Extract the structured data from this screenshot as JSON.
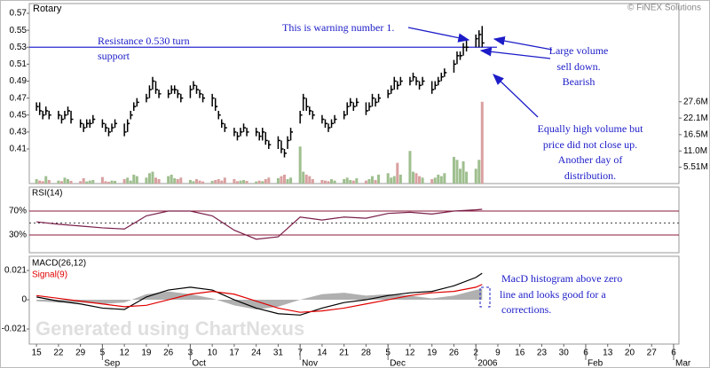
{
  "chart_data": [
    {
      "type": "ohlc",
      "title": "Rotary",
      "source": "© FiNEX Solutions",
      "color": "#000000",
      "xlim": [
        -2.3,
        204.7
      ],
      "x": [
        0,
        1,
        2,
        3,
        4,
        7,
        8,
        9,
        10,
        11,
        14,
        15,
        16,
        17,
        18,
        21,
        22,
        23,
        24,
        25,
        28,
        29,
        30,
        31,
        32,
        35,
        36,
        37,
        38,
        39,
        42,
        43,
        44,
        45,
        46,
        49,
        50,
        51,
        52,
        53,
        56,
        57,
        58,
        59,
        60,
        63,
        64,
        65,
        66,
        67,
        70,
        71,
        72,
        73,
        74,
        77,
        78,
        79,
        80,
        81,
        84,
        85,
        86,
        87,
        88,
        91,
        92,
        93,
        94,
        95,
        98,
        99,
        100,
        101,
        102,
        105,
        106,
        107,
        108,
        109,
        112,
        113,
        114,
        115,
        116,
        119,
        120,
        121,
        122,
        123,
        126,
        127,
        128,
        129,
        130,
        133,
        134,
        135,
        136,
        137,
        140,
        141,
        142
      ],
      "high": [
        0.465,
        0.465,
        0.455,
        0.46,
        0.455,
        0.455,
        0.45,
        0.455,
        0.46,
        0.455,
        0.445,
        0.44,
        0.445,
        0.445,
        0.45,
        0.445,
        0.44,
        0.435,
        0.44,
        0.445,
        0.44,
        0.445,
        0.455,
        0.465,
        0.47,
        0.475,
        0.485,
        0.495,
        0.49,
        0.48,
        0.48,
        0.485,
        0.485,
        0.48,
        0.475,
        0.485,
        0.49,
        0.485,
        0.48,
        0.475,
        0.475,
        0.47,
        0.455,
        0.445,
        0.44,
        0.435,
        0.43,
        0.435,
        0.44,
        0.435,
        0.435,
        0.43,
        0.435,
        0.43,
        0.42,
        0.425,
        0.42,
        0.41,
        0.425,
        0.435,
        0.455,
        0.475,
        0.47,
        0.46,
        0.455,
        0.45,
        0.445,
        0.44,
        0.445,
        0.45,
        0.455,
        0.465,
        0.47,
        0.465,
        0.47,
        0.465,
        0.465,
        0.475,
        0.47,
        0.475,
        0.48,
        0.485,
        0.495,
        0.49,
        0.495,
        0.495,
        0.5,
        0.495,
        0.49,
        0.495,
        0.49,
        0.49,
        0.495,
        0.5,
        0.505,
        0.515,
        0.525,
        0.525,
        0.535,
        0.54,
        0.545,
        0.55,
        0.555
      ],
      "low": [
        0.455,
        0.45,
        0.445,
        0.45,
        0.445,
        0.445,
        0.44,
        0.445,
        0.45,
        0.44,
        0.435,
        0.43,
        0.435,
        0.435,
        0.44,
        0.435,
        0.43,
        0.425,
        0.43,
        0.435,
        0.425,
        0.43,
        0.445,
        0.455,
        0.46,
        0.465,
        0.47,
        0.48,
        0.475,
        0.47,
        0.47,
        0.475,
        0.475,
        0.47,
        0.465,
        0.47,
        0.48,
        0.475,
        0.47,
        0.465,
        0.46,
        0.455,
        0.445,
        0.435,
        0.43,
        0.425,
        0.42,
        0.425,
        0.43,
        0.425,
        0.425,
        0.42,
        0.42,
        0.415,
        0.41,
        0.41,
        0.405,
        0.4,
        0.41,
        0.42,
        0.44,
        0.455,
        0.455,
        0.45,
        0.445,
        0.44,
        0.435,
        0.43,
        0.435,
        0.44,
        0.445,
        0.45,
        0.46,
        0.455,
        0.46,
        0.45,
        0.455,
        0.46,
        0.46,
        0.465,
        0.47,
        0.475,
        0.48,
        0.48,
        0.485,
        0.485,
        0.49,
        0.485,
        0.48,
        0.485,
        0.475,
        0.48,
        0.485,
        0.49,
        0.495,
        0.5,
        0.51,
        0.515,
        0.52,
        0.525,
        0.53,
        0.53,
        0.53
      ],
      "close": [
        0.46,
        0.455,
        0.45,
        0.455,
        0.45,
        0.45,
        0.445,
        0.45,
        0.455,
        0.445,
        0.44,
        0.435,
        0.44,
        0.44,
        0.445,
        0.44,
        0.435,
        0.43,
        0.435,
        0.44,
        0.43,
        0.44,
        0.45,
        0.46,
        0.465,
        0.47,
        0.48,
        0.49,
        0.48,
        0.475,
        0.475,
        0.48,
        0.48,
        0.475,
        0.47,
        0.48,
        0.485,
        0.48,
        0.475,
        0.47,
        0.47,
        0.46,
        0.45,
        0.44,
        0.435,
        0.43,
        0.425,
        0.43,
        0.435,
        0.43,
        0.43,
        0.425,
        0.43,
        0.42,
        0.415,
        0.42,
        0.41,
        0.405,
        0.42,
        0.43,
        0.45,
        0.47,
        0.46,
        0.455,
        0.45,
        0.445,
        0.44,
        0.435,
        0.44,
        0.445,
        0.45,
        0.46,
        0.465,
        0.46,
        0.465,
        0.455,
        0.46,
        0.47,
        0.465,
        0.47,
        0.475,
        0.48,
        0.49,
        0.485,
        0.49,
        0.49,
        0.495,
        0.49,
        0.485,
        0.49,
        0.48,
        0.485,
        0.49,
        0.495,
        0.5,
        0.51,
        0.52,
        0.52,
        0.53,
        0.53,
        0.54,
        0.545,
        0.535
      ],
      "volume": {
        "axis": "y2",
        "up_color": "#9fbf8f",
        "down_color": "#d9a0a0",
        "values": [
          1.5,
          1.0,
          0.8,
          2.5,
          1.2,
          1.0,
          0.8,
          2.0,
          1.5,
          0.9,
          0.8,
          1.8,
          0.7,
          1.0,
          1.2,
          2.2,
          0.8,
          0.6,
          1.0,
          0.9,
          1.5,
          2.0,
          1.0,
          3.0,
          2.5,
          2.0,
          3.5,
          4.0,
          2.0,
          1.5,
          2.5,
          3.0,
          1.8,
          1.5,
          2.0,
          1.2,
          0.8,
          1.5,
          1.0,
          0.7,
          0.9,
          1.2,
          1.5,
          1.0,
          2.0,
          1.5,
          0.8,
          1.0,
          1.2,
          0.9,
          0.7,
          1.0,
          0.8,
          1.5,
          2.0,
          1.8,
          2.5,
          3.0,
          1.5,
          2.0,
          12.5,
          4.0,
          3.0,
          2.5,
          1.5,
          1.2,
          1.0,
          0.8,
          1.5,
          1.0,
          1.5,
          2.0,
          1.2,
          1.0,
          1.8,
          1.0,
          1.5,
          2.5,
          1.2,
          3.0,
          3.5,
          2.0,
          2.5,
          7.0,
          3.0,
          11.0,
          4.0,
          3.5,
          2.5,
          2.0,
          1.5,
          2.0,
          3.0,
          2.5,
          3.5,
          9.0,
          8.0,
          5.0,
          7.5,
          4.0,
          5.0,
          8.0,
          27.6
        ]
      },
      "ylim": [
        0.3692,
        0.5815
      ],
      "yticks": [
        0.41,
        0.43,
        0.45,
        0.47,
        0.49,
        0.51,
        0.53,
        0.55,
        0.57
      ],
      "y2lim": [
        0,
        60.75
      ],
      "y2ticks": [
        {
          "value": 5.51,
          "label": "5.51M"
        },
        {
          "value": 11.0,
          "label": "11.0M"
        },
        {
          "value": 16.5,
          "label": "16.5M"
        },
        {
          "value": 22.1,
          "label": "22.1M"
        },
        {
          "value": 27.6,
          "label": "27.6M"
        }
      ],
      "hline": 0.53,
      "hline_color": "#2a2ad0",
      "annotations": [
        "This is warning number 1.",
        "Resistance 0.530 turn",
        "support",
        "Large volume",
        "sell down.",
        "Bearish",
        "Equally high volume but",
        "price did not close up.",
        "Another day of",
        "distribution."
      ]
    },
    {
      "type": "line",
      "title": "RSI(14)",
      "xlim": [
        -2.3,
        204.7
      ],
      "x": [
        0,
        7,
        14,
        21,
        28,
        35,
        42,
        49,
        56,
        63,
        70,
        77,
        84,
        91,
        98,
        105,
        112,
        119,
        126,
        133,
        140,
        142
      ],
      "series": [
        {
          "color": "#7a1f4a",
          "values": [
            52,
            48,
            45,
            42,
            40,
            62,
            70,
            70,
            62,
            38,
            23,
            27,
            60,
            55,
            60,
            58,
            66,
            68,
            65,
            70,
            72,
            73
          ]
        }
      ],
      "ylim": [
        0.4,
        110
      ],
      "yticks": [
        {
          "value": 70,
          "label": "70%"
        },
        {
          "value": 30,
          "label": "30%"
        }
      ],
      "grid": true,
      "grid_color": "#8b1a3a",
      "midline": 50
    },
    {
      "type": "line",
      "xlim": [
        -2.3,
        204.7
      ],
      "x": [
        0,
        7,
        14,
        21,
        28,
        35,
        42,
        49,
        56,
        63,
        70,
        77,
        84,
        91,
        98,
        105,
        112,
        119,
        126,
        133,
        140,
        142
      ],
      "series": [
        {
          "kind": "area",
          "color": "#b0b0b0",
          "values": [
            -0.001,
            -0.002,
            -0.002,
            -0.003,
            -0.002,
            0.004,
            0.006,
            0.004,
            0.001,
            -0.004,
            -0.007,
            -0.005,
            0.0,
            0.004,
            0.005,
            0.003,
            0.004,
            0.003,
            0.001,
            0.003,
            0.007,
            0.008
          ]
        },
        {
          "name": "MACD(26,12)",
          "color": "#000000",
          "values": [
            0.002,
            -0.001,
            -0.003,
            -0.006,
            -0.007,
            0.002,
            0.007,
            0.009,
            0.007,
            0.0,
            -0.006,
            -0.01,
            -0.011,
            -0.006,
            -0.002,
            0.0,
            0.003,
            0.005,
            0.006,
            0.01,
            0.016,
            0.019
          ]
        },
        {
          "name": "Signal(9)",
          "color": "#e00000",
          "values": [
            0.003,
            0.001,
            -0.001,
            -0.003,
            -0.005,
            -0.004,
            0.0,
            0.004,
            0.006,
            0.004,
            -0.001,
            -0.006,
            -0.009,
            -0.008,
            -0.006,
            -0.003,
            0.0,
            0.003,
            0.005,
            0.006,
            0.009,
            0.011
          ]
        }
      ],
      "ylim": [
        -0.0318,
        0.0312
      ],
      "yticks": [
        0.021,
        0,
        -0.021
      ],
      "xticks": [
        {
          "value": 0,
          "label": "15"
        },
        {
          "value": 7,
          "label": "22"
        },
        {
          "value": 14,
          "label": "29"
        },
        {
          "value": 21,
          "label": "5"
        },
        {
          "value": 28,
          "label": "12"
        },
        {
          "value": 35,
          "label": "19"
        },
        {
          "value": 42,
          "label": "26"
        },
        {
          "value": 49,
          "label": "3"
        },
        {
          "value": 56,
          "label": "10"
        },
        {
          "value": 63,
          "label": "17"
        },
        {
          "value": 70,
          "label": "24"
        },
        {
          "value": 77,
          "label": "31"
        },
        {
          "value": 84,
          "label": "7"
        },
        {
          "value": 91,
          "label": "14"
        },
        {
          "value": 98,
          "label": "21"
        },
        {
          "value": 105,
          "label": "28"
        },
        {
          "value": 112,
          "label": "5"
        },
        {
          "value": 119,
          "label": "12"
        },
        {
          "value": 126,
          "label": "19"
        },
        {
          "value": 133,
          "label": "26"
        },
        {
          "value": 140,
          "label": "2"
        },
        {
          "value": 147,
          "label": "9"
        },
        {
          "value": 154,
          "label": "16"
        },
        {
          "value": 161,
          "label": "23"
        },
        {
          "value": 168,
          "label": "30"
        },
        {
          "value": 175,
          "label": "6"
        },
        {
          "value": 182,
          "label": "13"
        },
        {
          "value": 189,
          "label": "20"
        },
        {
          "value": 196,
          "label": "27"
        },
        {
          "value": 203,
          "label": "6"
        }
      ],
      "month_ticks": [
        {
          "value": 21,
          "label": "Sep"
        },
        {
          "value": 49,
          "label": "Oct"
        },
        {
          "value": 84,
          "label": "Nov"
        },
        {
          "value": 112,
          "label": "Dec"
        },
        {
          "value": 140,
          "label": "2006"
        },
        {
          "value": 175,
          "label": "Feb"
        },
        {
          "value": 203,
          "label": "Mar"
        }
      ],
      "watermark": "Generated using ChartNexus",
      "annotations": [
        "MacD histogram above zero",
        "line and looks good for a",
        "corrections."
      ]
    }
  ]
}
